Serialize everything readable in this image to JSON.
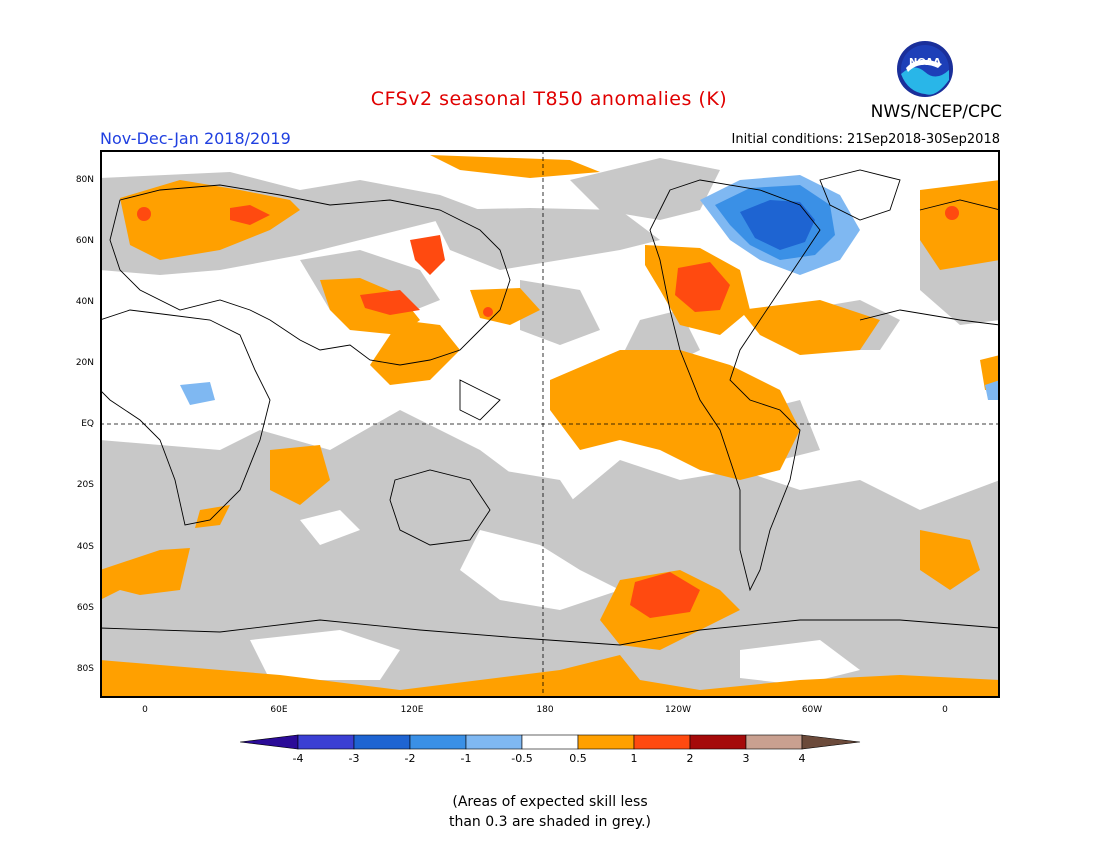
{
  "header": {
    "title": "CFSv2 seasonal T850 anomalies (K)",
    "org": "NWS/NCEP/CPC",
    "logo_text": "NOAA",
    "period": "Nov-Dec-Jan 2018/2019",
    "initial_conditions": "Initial conditions: 21Sep2018-30Sep2018"
  },
  "map": {
    "lat_labels": [
      "80N",
      "60N",
      "40N",
      "20N",
      "EQ",
      "20S",
      "40S",
      "60S",
      "80S"
    ],
    "lon_labels": [
      "0",
      "60E",
      "120E",
      "180",
      "120W",
      "60W",
      "0"
    ]
  },
  "colorbar": {
    "labels": [
      "-4",
      "-3",
      "-2",
      "-1",
      "-0.5",
      "0.5",
      "1",
      "2",
      "3",
      "4"
    ],
    "colors": [
      "#2b0b98",
      "#3b3fd3",
      "#1e64d2",
      "#3a90e6",
      "#7fb8f2",
      "#ffffff",
      "#ffa000",
      "#ff4a10",
      "#a50a0a",
      "#c9a090",
      "#6b4a3a"
    ]
  },
  "note": {
    "line1": "(Areas of expected skill less",
    "line2": "than 0.3 are shaded in grey.)"
  },
  "palette": {
    "grey": "#c8c8c8",
    "orange": "#ffa000",
    "red": "#ff4a10",
    "blue_light": "#7fb8f2",
    "blue_mid": "#3a90e6",
    "blue_dark": "#1e64d2",
    "title_red": "#e00000",
    "period_blue": "#2040e0"
  }
}
